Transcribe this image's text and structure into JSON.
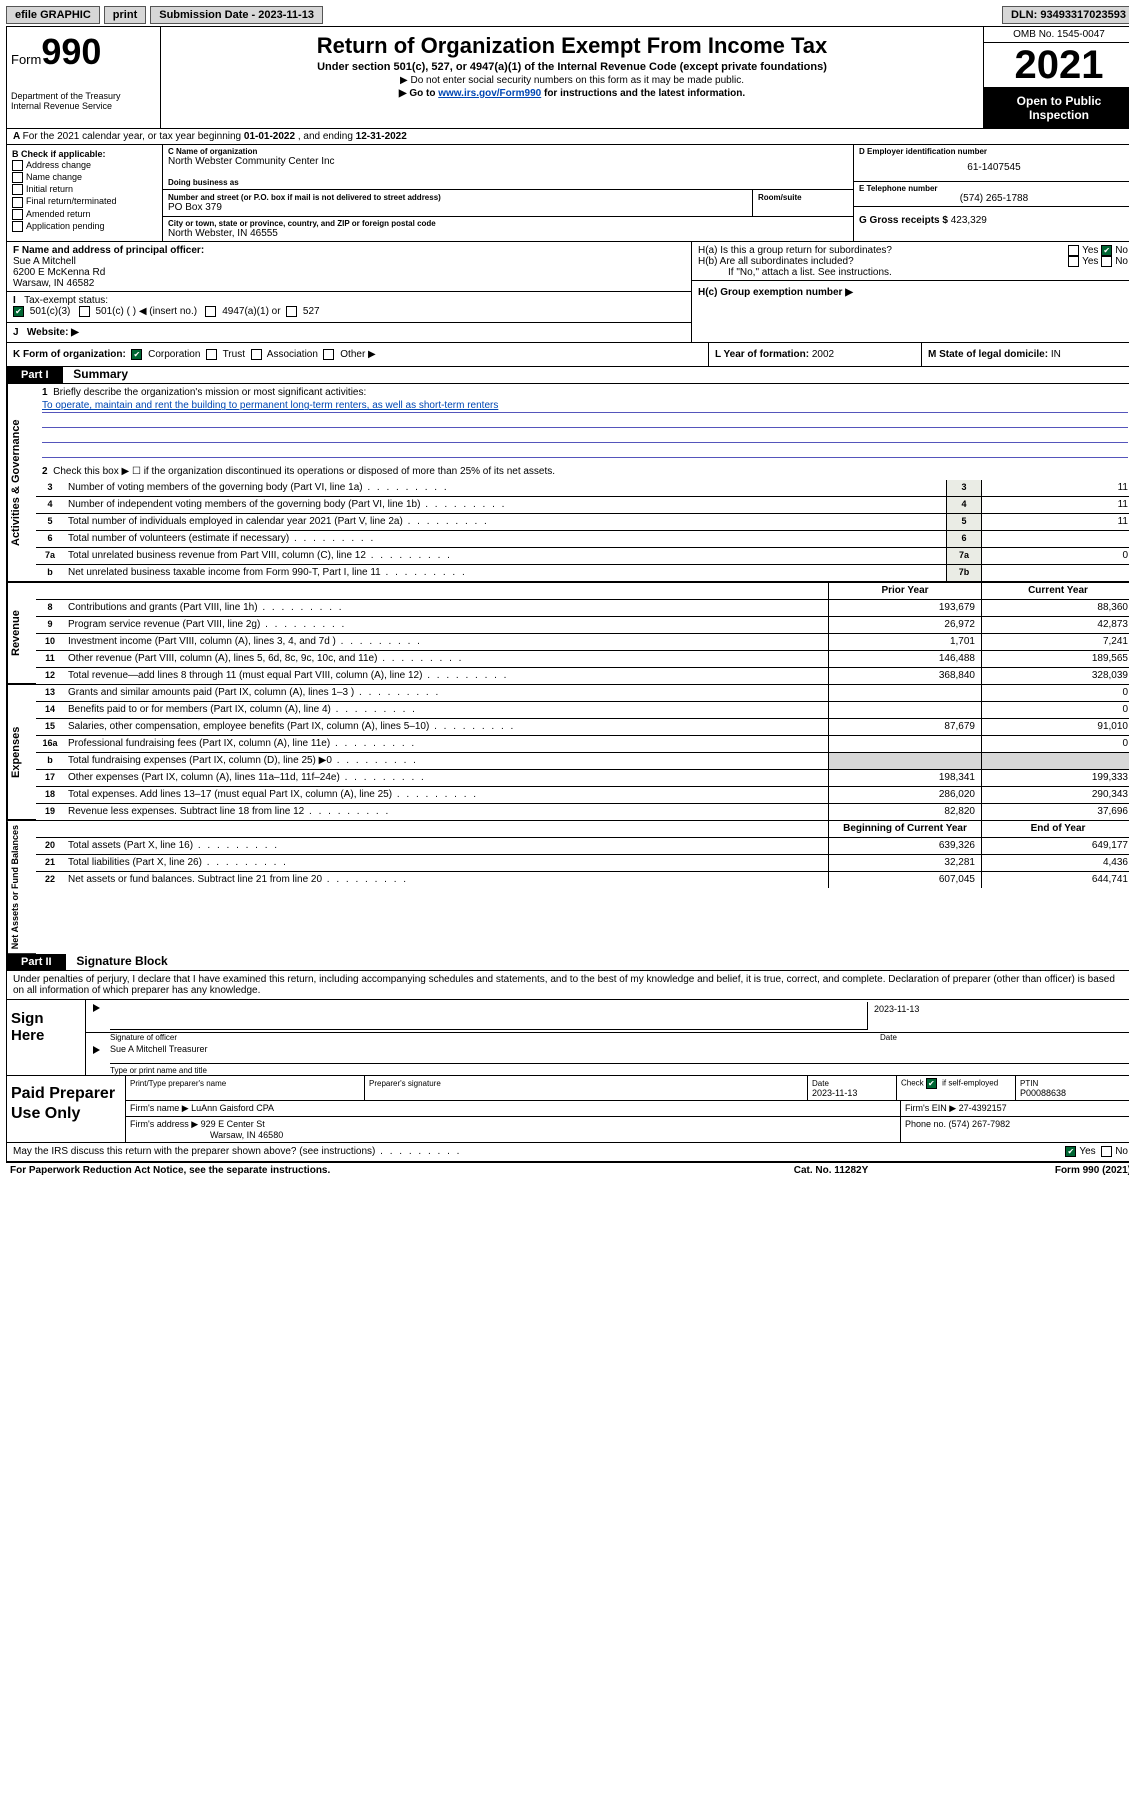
{
  "topbar": {
    "efile": "efile GRAPHIC",
    "print": "print",
    "subdate_label": "Submission Date - ",
    "subdate": "2023-11-13",
    "dln_label": "DLN: ",
    "dln": "93493317023593"
  },
  "header": {
    "form_word": "Form",
    "form_num": "990",
    "dept": "Department of the Treasury",
    "irs": "Internal Revenue Service",
    "title": "Return of Organization Exempt From Income Tax",
    "sub1": "Under section 501(c), 527, or 4947(a)(1) of the Internal Revenue Code (except private foundations)",
    "sub2": "▶ Do not enter social security numbers on this form as it may be made public.",
    "sub3a": "▶ Go to ",
    "sub3link": "www.irs.gov/Form990",
    "sub3b": " for instructions and the latest information.",
    "omb": "OMB No. 1545-0047",
    "year": "2021",
    "open": "Open to Public Inspection"
  },
  "A": {
    "text": "For the 2021 calendar year, or tax year beginning ",
    "begin": "01-01-2022",
    "mid": " , and ending ",
    "end": "12-31-2022"
  },
  "B": {
    "label": "B Check if applicable:",
    "addr": "Address change",
    "name": "Name change",
    "init": "Initial return",
    "final": "Final return/terminated",
    "amend": "Amended return",
    "app": "Application pending"
  },
  "C": {
    "name_label": "C Name of organization",
    "name": "North Webster Community Center Inc",
    "dba_label": "Doing business as",
    "addr_label": "Number and street (or P.O. box if mail is not delivered to street address)",
    "room_label": "Room/suite",
    "addr": "PO Box 379",
    "city_label": "City or town, state or province, country, and ZIP or foreign postal code",
    "city": "North Webster, IN  46555"
  },
  "D": {
    "label": "D Employer identification number",
    "val": "61-1407545"
  },
  "E": {
    "label": "E Telephone number",
    "val": "(574) 265-1788"
  },
  "G": {
    "label": "G Gross receipts $ ",
    "val": "423,329"
  },
  "F": {
    "label": "F Name and address of principal officer:",
    "name": "Sue A Mitchell",
    "addr1": "6200 E McKenna Rd",
    "addr2": "Warsaw, IN  46582"
  },
  "H": {
    "a": "H(a)  Is this a group return for subordinates?",
    "b": "H(b)  Are all subordinates included?",
    "b_note": "If \"No,\" attach a list. See instructions.",
    "c": "H(c)  Group exemption number ▶",
    "yes": "Yes",
    "no": "No"
  },
  "I": {
    "label": "Tax-exempt status:",
    "o1": "501(c)(3)",
    "o2": "501(c) (  ) ◀ (insert no.)",
    "o3": "4947(a)(1) or",
    "o4": "527"
  },
  "J": {
    "label": "Website: ▶"
  },
  "K": {
    "label": "K Form of organization:",
    "corp": "Corporation",
    "trust": "Trust",
    "assoc": "Association",
    "other": "Other ▶"
  },
  "L": {
    "label": "L Year of formation: ",
    "val": "2002"
  },
  "M": {
    "label": "M State of legal domicile: ",
    "val": "IN"
  },
  "parts": {
    "p1": "Part I",
    "p1_title": "Summary",
    "p2": "Part II",
    "p2_title": "Signature Block"
  },
  "p1": {
    "l1": "Briefly describe the organization's mission or most significant activities:",
    "mission": "To operate, maintain and rent the building to permanent long-term renters, as well as short-term renters",
    "l2": "Check this box ▶ ☐  if the organization discontinued its operations or disposed of more than 25% of its net assets.",
    "rows_gov": [
      {
        "n": "3",
        "t": "Number of voting members of the governing body (Part VI, line 1a)",
        "c": "3",
        "v": "11"
      },
      {
        "n": "4",
        "t": "Number of independent voting members of the governing body (Part VI, line 1b)",
        "c": "4",
        "v": "11"
      },
      {
        "n": "5",
        "t": "Total number of individuals employed in calendar year 2021 (Part V, line 2a)",
        "c": "5",
        "v": "11"
      },
      {
        "n": "6",
        "t": "Total number of volunteers (estimate if necessary)",
        "c": "6",
        "v": ""
      },
      {
        "n": "7a",
        "t": "Total unrelated business revenue from Part VIII, column (C), line 12",
        "c": "7a",
        "v": "0"
      },
      {
        "n": "b",
        "t": "Net unrelated business taxable income from Form 990-T, Part I, line 11",
        "c": "7b",
        "v": ""
      }
    ],
    "col_prior": "Prior Year",
    "col_curr": "Current Year",
    "col_beg": "Beginning of Current Year",
    "col_end": "End of Year",
    "rows_rev": [
      {
        "n": "8",
        "t": "Contributions and grants (Part VIII, line 1h)",
        "p": "193,679",
        "c": "88,360"
      },
      {
        "n": "9",
        "t": "Program service revenue (Part VIII, line 2g)",
        "p": "26,972",
        "c": "42,873"
      },
      {
        "n": "10",
        "t": "Investment income (Part VIII, column (A), lines 3, 4, and 7d )",
        "p": "1,701",
        "c": "7,241"
      },
      {
        "n": "11",
        "t": "Other revenue (Part VIII, column (A), lines 5, 6d, 8c, 9c, 10c, and 11e)",
        "p": "146,488",
        "c": "189,565"
      },
      {
        "n": "12",
        "t": "Total revenue—add lines 8 through 11 (must equal Part VIII, column (A), line 12)",
        "p": "368,840",
        "c": "328,039"
      }
    ],
    "rows_exp": [
      {
        "n": "13",
        "t": "Grants and similar amounts paid (Part IX, column (A), lines 1–3 )",
        "p": "",
        "c": "0"
      },
      {
        "n": "14",
        "t": "Benefits paid to or for members (Part IX, column (A), line 4)",
        "p": "",
        "c": "0"
      },
      {
        "n": "15",
        "t": "Salaries, other compensation, employee benefits (Part IX, column (A), lines 5–10)",
        "p": "87,679",
        "c": "91,010"
      },
      {
        "n": "16a",
        "t": "Professional fundraising fees (Part IX, column (A), line 11e)",
        "p": "",
        "c": "0"
      },
      {
        "n": "b",
        "t": "Total fundraising expenses (Part IX, column (D), line 25) ▶0",
        "p": "GRAY",
        "c": "GRAY"
      },
      {
        "n": "17",
        "t": "Other expenses (Part IX, column (A), lines 11a–11d, 11f–24e)",
        "p": "198,341",
        "c": "199,333"
      },
      {
        "n": "18",
        "t": "Total expenses. Add lines 13–17 (must equal Part IX, column (A), line 25)",
        "p": "286,020",
        "c": "290,343"
      },
      {
        "n": "19",
        "t": "Revenue less expenses. Subtract line 18 from line 12",
        "p": "82,820",
        "c": "37,696"
      }
    ],
    "rows_net": [
      {
        "n": "20",
        "t": "Total assets (Part X, line 16)",
        "p": "639,326",
        "c": "649,177"
      },
      {
        "n": "21",
        "t": "Total liabilities (Part X, line 26)",
        "p": "32,281",
        "c": "4,436"
      },
      {
        "n": "22",
        "t": "Net assets or fund balances. Subtract line 21 from line 20",
        "p": "607,045",
        "c": "644,741"
      }
    ]
  },
  "vtabs": {
    "gov": "Activities & Governance",
    "rev": "Revenue",
    "exp": "Expenses",
    "net": "Net Assets or Fund Balances"
  },
  "p2": {
    "decl": "Under penalties of perjury, I declare that I have examined this return, including accompanying schedules and statements, and to the best of my knowledge and belief, it is true, correct, and complete. Declaration of preparer (other than officer) is based on all information of which preparer has any knowledge.",
    "sign_here": "Sign Here",
    "sig_officer": "Signature of officer",
    "date": "Date",
    "date_val": "2023-11-13",
    "name_title": "Sue A Mitchell  Treasurer",
    "type_name": "Type or print name and title",
    "paid": "Paid Preparer Use Only",
    "prep_name_label": "Print/Type preparer's name",
    "prep_sig_label": "Preparer's signature",
    "prep_date_label": "Date",
    "prep_date": "2023-11-13",
    "check_if": "Check ☑ if self-employed",
    "ptin_label": "PTIN",
    "ptin": "P00088638",
    "firm_name_label": "Firm's name    ▶ ",
    "firm_name": "LuAnn Gaisford CPA",
    "firm_ein_label": "Firm's EIN ▶ ",
    "firm_ein": "27-4392157",
    "firm_addr_label": "Firm's address ▶ ",
    "firm_addr1": "929 E Center St",
    "firm_addr2": "Warsaw, IN  46580",
    "phone_label": "Phone no. ",
    "phone": "(574) 267-7982",
    "may_irs": "May the IRS discuss this return with the preparer shown above? (see instructions)",
    "foot_left": "For Paperwork Reduction Act Notice, see the separate instructions.",
    "foot_mid": "Cat. No. 11282Y",
    "foot_right": "Form 990 (2021)"
  }
}
